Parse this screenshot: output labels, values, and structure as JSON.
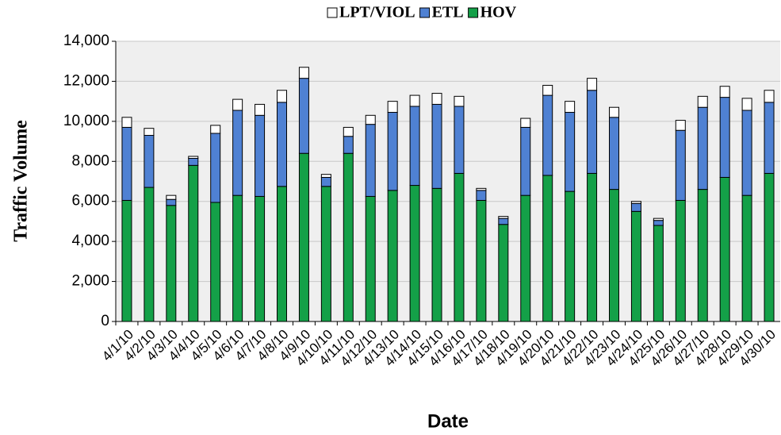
{
  "chart_data": {
    "type": "stacked_bar",
    "y_label": "Traffic Volume",
    "x_label": "Date",
    "categories": [
      "4/1/10",
      "4/2/10",
      "4/3/10",
      "4/4/10",
      "4/5/10",
      "4/6/10",
      "4/7/10",
      "4/8/10",
      "4/9/10",
      "4/10/10",
      "4/11/10",
      "4/12/10",
      "4/13/10",
      "4/14/10",
      "4/15/10",
      "4/16/10",
      "4/17/10",
      "4/18/10",
      "4/19/10",
      "4/20/10",
      "4/21/10",
      "4/22/10",
      "4/23/10",
      "4/24/10",
      "4/25/10",
      "4/26/10",
      "4/27/10",
      "4/28/10",
      "4/29/10",
      "4/30/10"
    ],
    "series": [
      {
        "name": "LPT/VIOL",
        "color": "#ffffff",
        "values": [
          500,
          350,
          200,
          100,
          400,
          550,
          550,
          600,
          550,
          150,
          450,
          450,
          550,
          550,
          550,
          500,
          100,
          100,
          450,
          500,
          550,
          600,
          500,
          100,
          100,
          500,
          550,
          550,
          600,
          600
        ]
      },
      {
        "name": "ETL",
        "color": "#4f81d3",
        "values": [
          3650,
          2600,
          300,
          350,
          3450,
          4250,
          4050,
          4200,
          3750,
          450,
          850,
          3600,
          3900,
          3950,
          4200,
          3350,
          500,
          300,
          3400,
          4000,
          3950,
          4150,
          3600,
          400,
          250,
          3500,
          4100,
          4000,
          4250,
          3550
        ]
      },
      {
        "name": "HOV",
        "color": "#14a048",
        "values": [
          6050,
          6700,
          5800,
          7800,
          5950,
          6300,
          6250,
          6750,
          8400,
          6750,
          8400,
          6250,
          6550,
          6800,
          6650,
          7400,
          6050,
          4850,
          6300,
          7300,
          6500,
          7400,
          6600,
          5500,
          4800,
          6050,
          6600,
          7200,
          6300,
          7400
        ]
      }
    ],
    "ylim": [
      0,
      14000
    ],
    "yticks": [
      0,
      {
        "value": 2000,
        "label": "2,000"
      },
      {
        "value": 4000,
        "label": "4,000"
      },
      {
        "value": 6000,
        "label": "6,000"
      },
      {
        "value": 8000,
        "label": "8,000"
      },
      {
        "value": 10000,
        "label": "10,000"
      },
      {
        "value": 12000,
        "label": "12,000"
      },
      {
        "value": 14000,
        "label": "14,000"
      }
    ],
    "grid": true,
    "legend": "top"
  }
}
